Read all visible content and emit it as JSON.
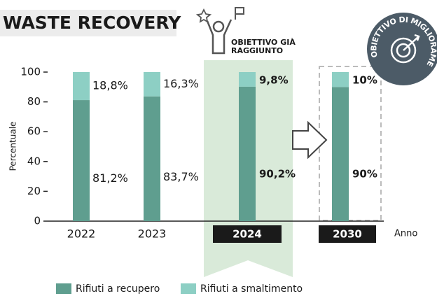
{
  "chart_data": {
    "type": "stacked_bar",
    "title": "WASTE RECOVERY",
    "y_label": "Percentuale",
    "x_label": "Anno",
    "categories": [
      "2022",
      "2023",
      "2024",
      "2030"
    ],
    "series": [
      {
        "name": "Rifiuti a recupero",
        "color": "#5f9e8f",
        "values": [
          81.2,
          83.7,
          90.2,
          90
        ],
        "value_labels": [
          "81,2%",
          "83,7%",
          "90,2%",
          "90%"
        ]
      },
      {
        "name": "Rifiuti a smaltimento",
        "color": "#8dcfc4",
        "values": [
          18.8,
          16.3,
          9.8,
          10
        ],
        "value_labels": [
          "18,8%",
          "16,3%",
          "9,8%",
          "10%"
        ]
      }
    ],
    "ylim": [
      0,
      100
    ],
    "yticks": [
      0,
      20,
      40,
      60,
      80,
      100
    ],
    "annotations": [
      "OBIETTIVO GIÀ",
      "RAGGIUNTO",
      "OBIETTIVO DI MIGLIORAMENTO"
    ],
    "legend": "bottom"
  }
}
